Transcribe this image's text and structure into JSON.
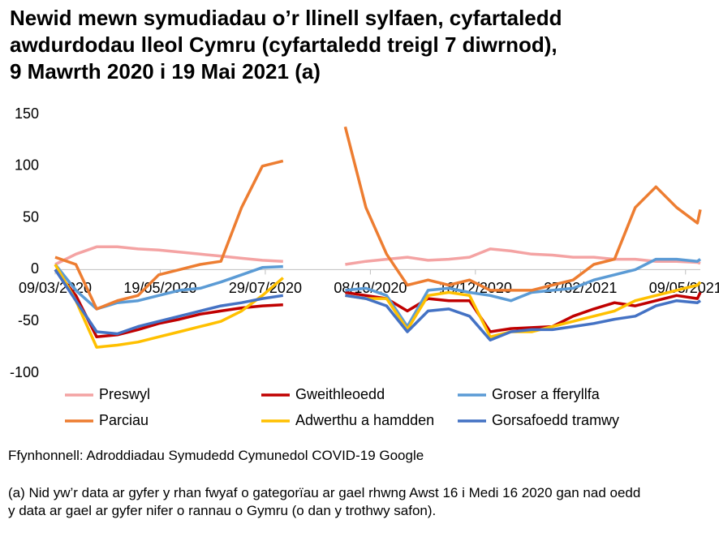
{
  "chart_data": {
    "type": "line",
    "title": [
      "Newid mewn symudiadau o’r llinell sylfaen, cyfartaledd",
      "awdurdodau lleol Cymru (cyfartaledd treigl 7 diwrnod),",
      "9 Mawrth 2020 i 19 Mai 2021 (a)"
    ],
    "source": "Ffynhonnell: Adroddiadau Symudedd Cymunedol COVID-19 Google",
    "note": "(a) Nid yw’r data ar gyfer y rhan fwyaf o gategorïau ar gael rhwng Awst 16 i Medi 16 2020 gan nad oedd y data ar gael ar gyfer nifer o rannau o Gymru (o dan y trothwy safon).",
    "x": [
      "09/03/2020",
      "23/03/2020",
      "06/04/2020",
      "20/04/2020",
      "04/05/2020",
      "18/05/2020",
      "01/06/2020",
      "15/06/2020",
      "29/06/2020",
      "13/07/2020",
      "27/07/2020",
      "10/08/2020",
      "24/08/2020",
      "07/09/2020",
      "21/09/2020",
      "05/10/2020",
      "19/10/2020",
      "02/11/2020",
      "16/11/2020",
      "30/11/2020",
      "14/12/2020",
      "28/12/2020",
      "11/01/2021",
      "25/01/2021",
      "08/02/2021",
      "22/02/2021",
      "08/03/2021",
      "22/03/2021",
      "05/04/2021",
      "19/04/2021",
      "03/05/2021",
      "17/05/2021",
      "19/05/2021"
    ],
    "xlim": [
      "09/03/2020",
      "19/05/2021"
    ],
    "xticks": [
      "09/03/2020",
      "19/05/2020",
      "29/07/2020",
      "08/10/2020",
      "18/12/2020",
      "27/02/2021",
      "09/05/2021"
    ],
    "ylim": [
      -100,
      150
    ],
    "yticks": [
      -100,
      -50,
      0,
      50,
      100,
      150
    ],
    "series": [
      {
        "name": "Preswyl",
        "color": "#f4a3a3",
        "values": [
          5,
          15,
          22,
          22,
          20,
          19,
          17,
          15,
          13,
          11,
          9,
          8,
          null,
          null,
          5,
          8,
          10,
          12,
          9,
          10,
          12,
          20,
          18,
          15,
          14,
          12,
          12,
          10,
          10,
          8,
          8,
          7,
          6
        ]
      },
      {
        "name": "Gweithleoedd",
        "color": "#c00000",
        "values": [
          0,
          -25,
          -65,
          -63,
          -58,
          -52,
          -48,
          -43,
          -40,
          -37,
          -35,
          -34,
          null,
          null,
          -22,
          -25,
          -28,
          -40,
          -28,
          -30,
          -30,
          -60,
          -57,
          -56,
          -55,
          -45,
          -38,
          -32,
          -35,
          -30,
          -25,
          -28,
          -22
        ]
      },
      {
        "name": "Groser a fferyllfa",
        "color": "#5b9bd5",
        "values": [
          5,
          -20,
          -38,
          -32,
          -30,
          -25,
          -20,
          -18,
          -12,
          -5,
          2,
          3,
          null,
          null,
          -20,
          -18,
          -25,
          -55,
          -20,
          -18,
          -22,
          -25,
          -30,
          -22,
          -20,
          -18,
          -10,
          -5,
          0,
          10,
          10,
          8,
          10
        ]
      },
      {
        "name": "Parciau",
        "color": "#ed7d31",
        "values": [
          12,
          5,
          -38,
          -30,
          -25,
          -5,
          0,
          5,
          8,
          60,
          100,
          105,
          null,
          null,
          138,
          60,
          15,
          -15,
          -10,
          -15,
          -10,
          -20,
          -20,
          -20,
          -15,
          -10,
          5,
          10,
          60,
          80,
          60,
          45,
          58
        ]
      },
      {
        "name": "Adwerthu a hamdden",
        "color": "#ffc000",
        "values": [
          5,
          -30,
          -75,
          -73,
          -70,
          -65,
          -60,
          -55,
          -50,
          -40,
          -25,
          -8,
          null,
          null,
          -25,
          -28,
          -28,
          -58,
          -25,
          -22,
          -25,
          -65,
          -60,
          -60,
          -55,
          -50,
          -45,
          -40,
          -30,
          -25,
          -20,
          -15,
          -12
        ]
      },
      {
        "name": "Gorsafoedd tramwy",
        "color": "#4472c4",
        "values": [
          0,
          -30,
          -60,
          -62,
          -55,
          -50,
          -45,
          -40,
          -35,
          -32,
          -28,
          -25,
          null,
          null,
          -25,
          -28,
          -35,
          -60,
          -40,
          -38,
          -45,
          -68,
          -60,
          -58,
          -58,
          -55,
          -52,
          -48,
          -45,
          -35,
          -30,
          -32,
          -30
        ]
      }
    ]
  }
}
